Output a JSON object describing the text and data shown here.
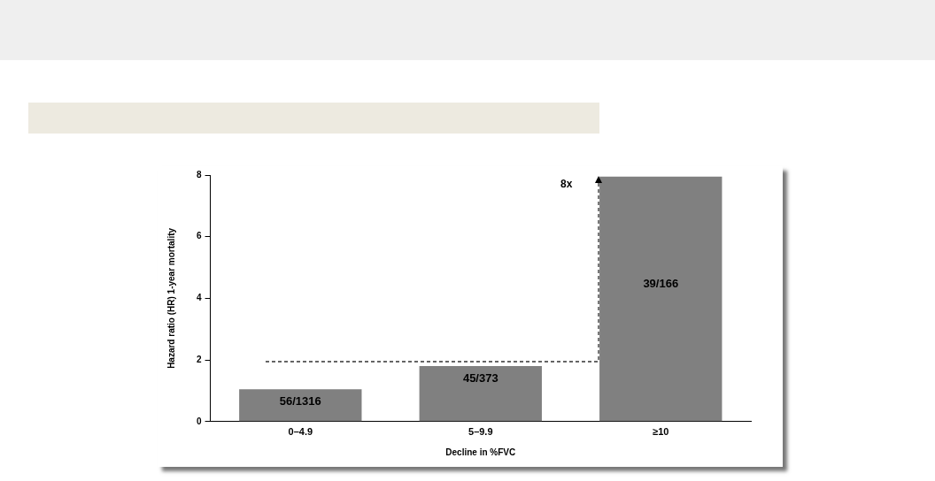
{
  "chart_data": {
    "type": "bar",
    "xlabel": "Decline in %FVC",
    "ylabel": "Hazard ratio (HR) 1-year mortality",
    "categories": [
      "0–4.9",
      "5–9.9",
      "≥10"
    ],
    "values": [
      1.05,
      1.8,
      7.95
    ],
    "color": "#808080",
    "value_labels": [
      "56/1316",
      "45/373",
      "39/166"
    ],
    "ylim": [
      0,
      8
    ],
    "yticks": [
      0,
      2,
      4,
      6,
      8
    ],
    "grid": false,
    "legend": false,
    "annotations": [
      "8x"
    ]
  }
}
